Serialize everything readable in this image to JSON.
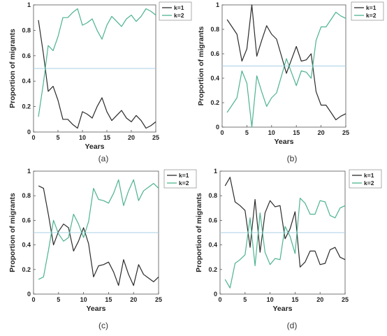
{
  "chart_data": [
    {
      "type": "line",
      "caption": "(a)",
      "xlabel": "Years",
      "ylabel": "Proportion of migrants",
      "xlim": [
        0,
        25
      ],
      "ylim": [
        0,
        1
      ],
      "xticks": [
        0,
        5,
        10,
        15,
        20,
        25
      ],
      "yticks": [
        0,
        0.2,
        0.4,
        0.6,
        0.8,
        1
      ],
      "reference_line": 0.5,
      "legend_position": "top-right",
      "x": [
        1,
        2,
        3,
        4,
        5,
        6,
        7,
        8,
        9,
        10,
        11,
        12,
        13,
        14,
        15,
        16,
        17,
        18,
        19,
        20,
        21,
        22,
        23,
        24,
        25
      ],
      "series": [
        {
          "name": "k=1",
          "color": "#2b2b2b",
          "values": [
            0.88,
            0.62,
            0.32,
            0.36,
            0.25,
            0.1,
            0.1,
            0.06,
            0.03,
            0.16,
            0.14,
            0.11,
            0.2,
            0.27,
            0.16,
            0.09,
            0.13,
            0.17,
            0.11,
            0.08,
            0.13,
            0.09,
            0.03,
            0.05,
            0.08
          ]
        },
        {
          "name": "k=2",
          "color": "#4db38f",
          "values": [
            0.12,
            0.38,
            0.68,
            0.64,
            0.75,
            0.9,
            0.9,
            0.94,
            0.97,
            0.84,
            0.86,
            0.89,
            0.8,
            0.73,
            0.84,
            0.91,
            0.87,
            0.83,
            0.89,
            0.92,
            0.87,
            0.91,
            0.97,
            0.95,
            0.92
          ]
        }
      ]
    },
    {
      "type": "line",
      "caption": "(b)",
      "xlabel": "Years",
      "ylabel": "Proportion of migrants",
      "xlim": [
        0,
        25
      ],
      "ylim": [
        0,
        1
      ],
      "xticks": [
        0,
        5,
        10,
        15,
        20,
        25
      ],
      "yticks": [
        0,
        0.2,
        0.4,
        0.6,
        0.8,
        1
      ],
      "reference_line": 0.5,
      "legend_position": "top-right",
      "x": [
        1,
        2,
        3,
        4,
        5,
        6,
        7,
        8,
        9,
        10,
        11,
        12,
        13,
        14,
        15,
        16,
        17,
        18,
        19,
        20,
        21,
        22,
        23,
        24,
        25
      ],
      "series": [
        {
          "name": "k=1",
          "color": "#2b2b2b",
          "values": [
            0.88,
            0.82,
            0.76,
            0.54,
            0.64,
            1.0,
            0.58,
            0.71,
            0.83,
            0.76,
            0.72,
            0.58,
            0.44,
            0.55,
            0.66,
            0.54,
            0.55,
            0.6,
            0.29,
            0.18,
            0.18,
            0.12,
            0.06,
            0.09,
            0.11
          ]
        },
        {
          "name": "k=2",
          "color": "#4db38f",
          "values": [
            0.12,
            0.18,
            0.24,
            0.46,
            0.36,
            0.0,
            0.42,
            0.29,
            0.17,
            0.24,
            0.28,
            0.42,
            0.56,
            0.45,
            0.34,
            0.46,
            0.45,
            0.4,
            0.71,
            0.82,
            0.82,
            0.88,
            0.94,
            0.91,
            0.89
          ]
        }
      ]
    },
    {
      "type": "line",
      "caption": "(c)",
      "xlabel": "Years",
      "ylabel": "Proportion of migrants",
      "xlim": [
        0,
        25
      ],
      "ylim": [
        0,
        1
      ],
      "xticks": [
        0,
        5,
        10,
        15,
        20,
        25
      ],
      "yticks": [
        0,
        0.2,
        0.4,
        0.6,
        0.8,
        1
      ],
      "reference_line": 0.5,
      "legend_position": "top-right",
      "x": [
        1,
        2,
        3,
        4,
        5,
        6,
        7,
        8,
        9,
        10,
        11,
        12,
        13,
        14,
        15,
        16,
        17,
        18,
        19,
        20,
        21,
        22,
        23,
        24,
        25
      ],
      "series": [
        {
          "name": "k=1",
          "color": "#2b2b2b",
          "values": [
            0.88,
            0.86,
            0.64,
            0.4,
            0.51,
            0.57,
            0.54,
            0.35,
            0.43,
            0.54,
            0.41,
            0.14,
            0.23,
            0.24,
            0.26,
            0.18,
            0.07,
            0.28,
            0.16,
            0.07,
            0.24,
            0.16,
            0.13,
            0.1,
            0.14
          ]
        },
        {
          "name": "k=2",
          "color": "#4db38f",
          "values": [
            0.12,
            0.14,
            0.36,
            0.6,
            0.49,
            0.43,
            0.46,
            0.65,
            0.57,
            0.46,
            0.59,
            0.86,
            0.77,
            0.76,
            0.74,
            0.82,
            0.93,
            0.72,
            0.84,
            0.93,
            0.76,
            0.84,
            0.87,
            0.9,
            0.86
          ]
        }
      ]
    },
    {
      "type": "line",
      "caption": "(d)",
      "xlabel": "Years",
      "ylabel": "Proportion of migrants",
      "xlim": [
        0,
        25
      ],
      "ylim": [
        0,
        1
      ],
      "xticks": [
        0,
        5,
        10,
        15,
        20,
        25
      ],
      "yticks": [
        0,
        0.2,
        0.4,
        0.6,
        0.8,
        1
      ],
      "reference_line": 0.5,
      "legend_position": "top-right",
      "x": [
        1,
        2,
        3,
        4,
        5,
        6,
        7,
        8,
        9,
        10,
        11,
        12,
        13,
        14,
        15,
        16,
        17,
        18,
        19,
        20,
        21,
        22,
        23,
        24,
        25
      ],
      "series": [
        {
          "name": "k=1",
          "color": "#2b2b2b",
          "values": [
            0.88,
            0.95,
            0.75,
            0.72,
            0.68,
            0.38,
            0.77,
            0.34,
            0.66,
            0.76,
            0.71,
            0.72,
            0.45,
            0.53,
            0.67,
            0.22,
            0.26,
            0.35,
            0.35,
            0.24,
            0.25,
            0.36,
            0.38,
            0.3,
            0.28
          ]
        },
        {
          "name": "k=2",
          "color": "#4db38f",
          "values": [
            0.12,
            0.05,
            0.25,
            0.28,
            0.32,
            0.62,
            0.23,
            0.66,
            0.34,
            0.24,
            0.29,
            0.28,
            0.55,
            0.47,
            0.33,
            0.78,
            0.74,
            0.65,
            0.65,
            0.76,
            0.75,
            0.64,
            0.62,
            0.7,
            0.72
          ]
        }
      ]
    }
  ]
}
